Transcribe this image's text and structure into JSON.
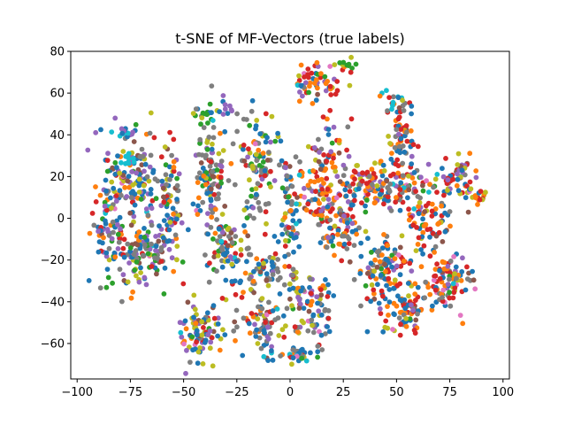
{
  "chart_data": {
    "type": "scatter",
    "title": "t-SNE of MF-Vectors (true labels)",
    "xlabel": "",
    "ylabel": "",
    "xlim": [
      -103,
      103
    ],
    "ylim": [
      -77,
      80
    ],
    "xticks": [
      -100,
      -75,
      -50,
      -25,
      0,
      25,
      50,
      75,
      100
    ],
    "yticks": [
      -60,
      -40,
      -20,
      0,
      20,
      40,
      60,
      80
    ],
    "grid": false,
    "legend": "none",
    "marker_size": 5,
    "palette": [
      "#1f77b4",
      "#ff7f0e",
      "#2ca02c",
      "#d62728",
      "#9467bd",
      "#8c564b",
      "#e377c2",
      "#7f7f7f",
      "#bcbd22",
      "#17becf"
    ],
    "clusters": [
      {
        "cx": -85,
        "cy": 0,
        "rx": 8,
        "ry": 25,
        "n": 90,
        "weights": [
          4,
          1,
          1,
          1,
          3,
          1,
          0.3,
          2,
          1,
          0.3
        ]
      },
      {
        "cx": -72,
        "cy": 20,
        "rx": 12,
        "ry": 20,
        "n": 120,
        "weights": [
          3,
          1,
          1,
          1,
          3,
          1,
          0.3,
          2,
          1.5,
          0.5
        ]
      },
      {
        "cx": -72,
        "cy": -18,
        "rx": 12,
        "ry": 14,
        "n": 110,
        "weights": [
          3,
          1,
          1,
          1,
          3,
          1,
          0.3,
          2,
          1.5,
          0.3
        ]
      },
      {
        "cx": -57,
        "cy": 5,
        "rx": 7,
        "ry": 25,
        "n": 80,
        "weights": [
          3,
          1,
          1,
          1,
          2,
          1,
          0.3,
          2,
          2,
          0.3
        ]
      },
      {
        "cx": -76,
        "cy": 28,
        "rx": 3,
        "ry": 4,
        "n": 12,
        "weights": [
          0,
          0,
          0,
          0,
          0,
          0,
          0,
          0,
          0,
          1
        ]
      },
      {
        "cx": -78,
        "cy": 42,
        "rx": 6,
        "ry": 2,
        "n": 14,
        "weights": [
          3,
          0,
          0,
          0,
          1,
          0,
          0,
          0,
          0,
          1
        ]
      },
      {
        "cx": -38,
        "cy": 20,
        "rx": 8,
        "ry": 25,
        "n": 110,
        "weights": [
          3,
          1,
          1,
          1,
          1,
          1,
          0.3,
          4,
          1,
          0.3
        ]
      },
      {
        "cx": -30,
        "cy": -15,
        "rx": 10,
        "ry": 15,
        "n": 90,
        "weights": [
          3,
          1,
          1,
          1,
          1,
          1,
          0.3,
          4,
          1,
          0.3
        ]
      },
      {
        "cx": -15,
        "cy": 25,
        "rx": 8,
        "ry": 25,
        "n": 100,
        "weights": [
          2,
          1,
          1,
          1,
          1,
          1,
          0.3,
          4,
          2,
          0.3
        ]
      },
      {
        "cx": -40,
        "cy": 50,
        "rx": 6,
        "ry": 4,
        "n": 20,
        "weights": [
          1,
          0,
          3,
          0,
          0,
          0,
          0,
          1,
          1,
          0
        ]
      },
      {
        "cx": -28,
        "cy": 53,
        "rx": 4,
        "ry": 3,
        "n": 10,
        "weights": [
          1,
          0,
          0,
          0,
          3,
          0,
          0,
          1,
          0,
          0
        ]
      },
      {
        "cx": -12,
        "cy": -25,
        "rx": 8,
        "ry": 12,
        "n": 50,
        "weights": [
          3,
          1,
          0.5,
          1,
          1,
          1,
          0.3,
          3,
          1,
          0.3
        ]
      },
      {
        "cx": 0,
        "cy": 0,
        "rx": 5,
        "ry": 30,
        "n": 70,
        "weights": [
          3,
          1,
          0.5,
          1,
          1,
          1,
          0.3,
          4,
          1,
          0.3
        ]
      },
      {
        "cx": -42,
        "cy": -55,
        "rx": 10,
        "ry": 12,
        "n": 90,
        "weights": [
          3,
          1,
          0.5,
          1,
          2,
          1,
          0.3,
          1,
          3,
          0.3
        ]
      },
      {
        "cx": -12,
        "cy": -50,
        "rx": 10,
        "ry": 12,
        "n": 70,
        "weights": [
          3,
          1,
          0.5,
          1,
          1,
          1,
          0.3,
          4,
          2,
          0.3
        ]
      },
      {
        "cx": 3,
        "cy": -65,
        "rx": 10,
        "ry": 4,
        "n": 40,
        "weights": [
          3,
          1,
          0.5,
          1,
          1,
          1,
          0.3,
          4,
          1,
          0.3
        ]
      },
      {
        "cx": 10,
        "cy": -42,
        "rx": 10,
        "ry": 15,
        "n": 90,
        "weights": [
          3,
          1,
          0.5,
          2,
          2,
          1,
          0.3,
          3,
          2,
          0.3
        ]
      },
      {
        "cx": 15,
        "cy": 15,
        "rx": 10,
        "ry": 30,
        "n": 140,
        "weights": [
          2,
          4,
          0.5,
          4,
          2,
          1,
          0.3,
          1,
          1,
          0.3
        ]
      },
      {
        "cx": 15,
        "cy": 65,
        "rx": 12,
        "ry": 8,
        "n": 60,
        "weights": [
          1,
          3,
          1,
          4,
          3,
          1,
          0.3,
          1,
          1,
          0.3
        ]
      },
      {
        "cx": 26,
        "cy": 74,
        "rx": 5,
        "ry": 2,
        "n": 10,
        "weights": [
          0,
          0,
          3,
          0,
          0,
          0,
          0,
          0,
          1,
          0
        ]
      },
      {
        "cx": 25,
        "cy": -5,
        "rx": 8,
        "ry": 12,
        "n": 60,
        "weights": [
          3,
          2,
          0.5,
          2,
          1,
          1,
          0.3,
          2,
          1,
          0.3
        ]
      },
      {
        "cx": 35,
        "cy": 15,
        "rx": 10,
        "ry": 12,
        "n": 70,
        "weights": [
          3,
          3,
          0.5,
          3,
          1,
          1,
          0.3,
          2,
          2,
          0.3
        ]
      },
      {
        "cx": 52,
        "cy": 40,
        "rx": 6,
        "ry": 18,
        "n": 60,
        "weights": [
          3,
          2,
          0.5,
          3,
          1,
          1,
          0.3,
          2,
          1,
          0.3
        ]
      },
      {
        "cx": 48,
        "cy": 57,
        "rx": 5,
        "ry": 4,
        "n": 14,
        "weights": [
          1,
          1,
          0,
          1,
          0,
          0,
          0,
          0,
          1,
          2
        ]
      },
      {
        "cx": 50,
        "cy": 15,
        "rx": 12,
        "ry": 12,
        "n": 80,
        "weights": [
          3,
          3,
          0.5,
          4,
          1,
          1,
          0.3,
          2,
          1,
          0.3
        ]
      },
      {
        "cx": 45,
        "cy": -25,
        "rx": 12,
        "ry": 18,
        "n": 120,
        "weights": [
          4,
          3,
          0.5,
          4,
          1,
          1,
          0.3,
          2,
          1,
          0.3
        ]
      },
      {
        "cx": 55,
        "cy": -45,
        "rx": 10,
        "ry": 10,
        "n": 70,
        "weights": [
          3,
          3,
          0.3,
          4,
          1,
          1,
          0.8,
          1,
          1,
          0.3
        ]
      },
      {
        "cx": 65,
        "cy": 0,
        "rx": 10,
        "ry": 15,
        "n": 80,
        "weights": [
          3,
          3,
          0.5,
          4,
          1,
          1,
          0.3,
          2,
          1,
          0.3
        ]
      },
      {
        "cx": 75,
        "cy": -30,
        "rx": 10,
        "ry": 12,
        "n": 90,
        "weights": [
          3,
          3,
          0.5,
          3,
          1,
          1,
          1.5,
          2,
          1,
          0.3
        ]
      },
      {
        "cx": 78,
        "cy": 20,
        "rx": 8,
        "ry": 12,
        "n": 60,
        "weights": [
          3,
          2,
          0.5,
          3,
          2,
          1,
          0.3,
          1,
          2,
          0.3
        ]
      },
      {
        "cx": 88,
        "cy": 10,
        "rx": 4,
        "ry": 3,
        "n": 14,
        "weights": [
          0,
          2,
          0,
          1,
          0,
          0,
          0,
          0,
          1,
          0
        ]
      }
    ]
  }
}
